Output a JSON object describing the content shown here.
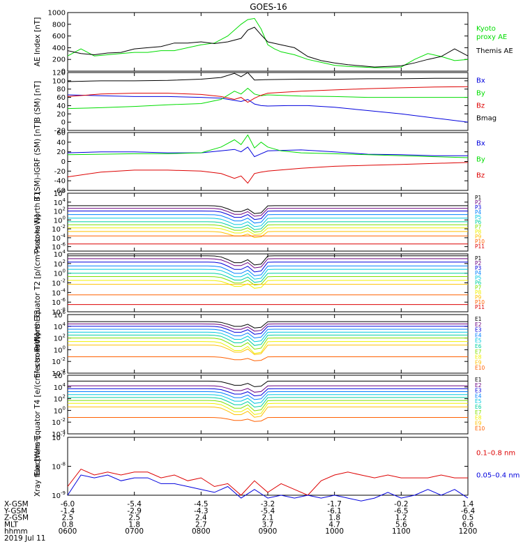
{
  "title": "GOES-16",
  "date_label": "2019 Jul 11",
  "footer": {
    "row_labels": [
      "X-GSM",
      "Y-GSM",
      "Z-GSM",
      "MLT",
      "hhmm"
    ],
    "columns": [
      [
        "-6.0",
        "-1.4",
        "2.5",
        "0.8",
        "0600"
      ],
      [
        "-5.4",
        "-2.9",
        "2.5",
        "1.8",
        "0700"
      ],
      [
        "-4.5",
        "-4.3",
        "2.4",
        "2.7",
        "0800"
      ],
      [
        "-3.2",
        "-5.4",
        "2.1",
        "3.7",
        "0900"
      ],
      [
        "-1.7",
        "-6.1",
        "1.8",
        "4.7",
        "1000"
      ],
      [
        "-0.2",
        "-6.5",
        "1.2",
        "5.6",
        "1100"
      ],
      [
        "1.4",
        "-6.4",
        "0.5",
        "6.6",
        "1200"
      ]
    ]
  },
  "colors": {
    "black": "#000000",
    "green": "#00dd00",
    "blue": "#0000dd",
    "red": "#dd0000",
    "channels": [
      "#000000",
      "#6a0080",
      "#0000dd",
      "#0080ff",
      "#00c8e0",
      "#00d0a0",
      "#80e000",
      "#f0f000",
      "#ffc000",
      "#ff6000",
      "#dd0000"
    ]
  },
  "chart_data": [
    {
      "type": "line",
      "ylabel": "AE Index [nT]",
      "ylim": [
        0,
        1000
      ],
      "yticks": [
        "0",
        "200",
        "400",
        "600",
        "800",
        "1000"
      ],
      "legend": [
        {
          "label": "Kyoto proxy AE",
          "lines": [
            "Kyoto",
            "proxy AE"
          ],
          "color": "#00dd00"
        },
        {
          "label": "Themis AE",
          "lines": [
            "Themis AE"
          ],
          "color": "#000000"
        }
      ],
      "series": [
        {
          "name": "Kyoto proxy AE",
          "color": "#00dd00",
          "x": [
            0,
            0.2,
            0.4,
            0.6,
            0.8,
            1.0,
            1.2,
            1.4,
            1.6,
            1.8,
            2.0,
            2.2,
            2.4,
            2.6,
            2.7,
            2.8,
            2.9,
            3.0,
            3.1,
            3.2,
            3.4,
            3.6,
            3.8,
            4.0,
            4.2,
            4.4,
            4.6,
            4.8,
            5.0,
            5.2,
            5.4,
            5.6,
            5.8,
            6.0
          ],
          "y": [
            260,
            380,
            260,
            280,
            300,
            320,
            320,
            350,
            350,
            400,
            450,
            480,
            600,
            800,
            880,
            900,
            720,
            450,
            380,
            330,
            280,
            200,
            150,
            100,
            80,
            70,
            60,
            60,
            70,
            200,
            300,
            250,
            180,
            200
          ]
        },
        {
          "name": "Themis AE",
          "color": "#000000",
          "x": [
            0,
            0.2,
            0.4,
            0.6,
            0.8,
            1.0,
            1.2,
            1.4,
            1.6,
            1.8,
            2.0,
            2.2,
            2.4,
            2.6,
            2.7,
            2.8,
            2.9,
            3.0,
            3.2,
            3.4,
            3.6,
            3.8,
            4.0,
            4.2,
            4.4,
            4.6,
            4.8,
            5.0,
            5.2,
            5.4,
            5.6,
            5.8,
            6.0
          ],
          "y": [
            350,
            300,
            280,
            310,
            320,
            380,
            400,
            420,
            480,
            480,
            500,
            470,
            500,
            560,
            700,
            750,
            620,
            500,
            450,
            400,
            250,
            180,
            140,
            110,
            90,
            70,
            80,
            90,
            140,
            200,
            250,
            380,
            260
          ]
        }
      ]
    },
    {
      "type": "line",
      "ylabel": "B (SM) [nT]",
      "ylim": [
        -20,
        120
      ],
      "yticks": [
        "-20",
        "0",
        "20",
        "40",
        "60",
        "80",
        "100",
        "120"
      ],
      "legend": [
        {
          "label": "Bx",
          "lines": [
            "Bx"
          ],
          "color": "#0000dd"
        },
        {
          "label": "By",
          "lines": [
            "By"
          ],
          "color": "#00dd00"
        },
        {
          "label": "Bz",
          "lines": [
            "Bz"
          ],
          "color": "#dd0000"
        },
        {
          "label": "Bmag",
          "lines": [
            "Bmag"
          ],
          "color": "#000000"
        }
      ],
      "series": [
        {
          "name": "Bmag",
          "color": "#000000",
          "x": [
            0,
            0.5,
            1.0,
            1.5,
            2.0,
            2.3,
            2.5,
            2.6,
            2.7,
            2.8,
            3.0,
            3.5,
            4.0,
            4.5,
            5.0,
            5.5,
            6.0
          ],
          "y": [
            98,
            100,
            100,
            101,
            104,
            108,
            118,
            110,
            120,
            102,
            103,
            104,
            104,
            105,
            105,
            106,
            106
          ]
        },
        {
          "name": "Bx",
          "color": "#0000dd",
          "x": [
            0,
            0.5,
            1.0,
            1.5,
            2.0,
            2.3,
            2.6,
            2.7,
            2.8,
            2.9,
            3.0,
            3.3,
            3.6,
            4.0,
            4.5,
            5.0,
            5.5,
            6.0
          ],
          "y": [
            66,
            64,
            62,
            62,
            60,
            58,
            50,
            55,
            44,
            40,
            39,
            40,
            40,
            36,
            28,
            20,
            10,
            0
          ]
        },
        {
          "name": "By",
          "color": "#00dd00",
          "x": [
            0,
            0.5,
            1.0,
            1.5,
            2.0,
            2.3,
            2.5,
            2.6,
            2.7,
            2.8,
            2.9,
            3.0,
            3.5,
            4.0,
            4.5,
            5.0,
            5.5,
            6.0
          ],
          "y": [
            33,
            35,
            38,
            42,
            45,
            55,
            75,
            68,
            82,
            68,
            64,
            66,
            63,
            62,
            60,
            60,
            60,
            60
          ]
        },
        {
          "name": "Bz",
          "color": "#dd0000",
          "x": [
            0,
            0.5,
            1.0,
            1.5,
            2.0,
            2.3,
            2.5,
            2.6,
            2.7,
            2.8,
            2.9,
            3.0,
            3.5,
            4.0,
            4.5,
            5.0,
            5.5,
            6.0
          ],
          "y": [
            62,
            68,
            70,
            70,
            67,
            62,
            55,
            60,
            48,
            58,
            65,
            70,
            75,
            78,
            81,
            83,
            85,
            86
          ]
        }
      ]
    },
    {
      "type": "line",
      "ylabel": "B (SM)-IGRF (SM) [nT]",
      "ylim": [
        -60,
        60
      ],
      "yticks": [
        "-60",
        "-40",
        "-20",
        "0",
        "20",
        "40",
        "60"
      ],
      "legend": [
        {
          "label": "Bx",
          "lines": [
            "Bx"
          ],
          "color": "#0000dd"
        },
        {
          "label": "By",
          "lines": [
            "By"
          ],
          "color": "#00dd00"
        },
        {
          "label": "Bz",
          "lines": [
            "Bz"
          ],
          "color": "#dd0000"
        }
      ],
      "series": [
        {
          "name": "Bx",
          "color": "#0000dd",
          "x": [
            0,
            0.5,
            1.0,
            1.5,
            2.0,
            2.3,
            2.5,
            2.6,
            2.7,
            2.8,
            2.9,
            3.0,
            3.5,
            4.0,
            4.5,
            5.0,
            5.5,
            6.0
          ],
          "y": [
            18,
            20,
            20,
            18,
            18,
            22,
            25,
            20,
            30,
            10,
            16,
            22,
            24,
            20,
            15,
            14,
            12,
            12
          ]
        },
        {
          "name": "By",
          "color": "#00dd00",
          "x": [
            0,
            0.5,
            1.0,
            1.5,
            2.0,
            2.3,
            2.5,
            2.6,
            2.7,
            2.8,
            2.9,
            3.0,
            3.2,
            3.5,
            4.0,
            4.5,
            5.0,
            5.5,
            6.0
          ],
          "y": [
            14,
            15,
            16,
            16,
            18,
            30,
            45,
            35,
            55,
            28,
            40,
            30,
            22,
            18,
            16,
            14,
            12,
            10,
            8
          ]
        },
        {
          "name": "Bz",
          "color": "#dd0000",
          "x": [
            0,
            0.5,
            1.0,
            1.5,
            2.0,
            2.3,
            2.5,
            2.6,
            2.7,
            2.8,
            2.9,
            3.0,
            3.5,
            4.0,
            4.5,
            5.0,
            5.5,
            6.0
          ],
          "y": [
            -32,
            -22,
            -18,
            -18,
            -20,
            -25,
            -35,
            -30,
            -45,
            -25,
            -22,
            -20,
            -14,
            -10,
            -8,
            -6,
            -4,
            -2
          ]
        }
      ]
    },
    {
      "type": "log-flux",
      "ylabel": "Protons North T1",
      "ylog": [
        -7,
        6
      ],
      "yticks": [
        {
          "m": "10",
          "e": "6",
          "v": 6
        },
        {
          "m": "10",
          "e": "4",
          "v": 4
        },
        {
          "m": "10",
          "e": "2",
          "v": 2
        },
        {
          "m": "10",
          "e": "0",
          "v": 0
        },
        {
          "m": "10",
          "e": "-2",
          "v": -2
        },
        {
          "m": "10",
          "e": "-4",
          "v": -4
        },
        {
          "m": "10",
          "e": "-6",
          "v": -6
        }
      ],
      "channels": [
        "P1",
        "P2",
        "P3",
        "P4",
        "P5",
        "P6",
        "P7",
        "P8",
        "P9",
        "P10",
        "P11"
      ],
      "base_levels": [
        3.2,
        2.6,
        2.0,
        1.2,
        0.4,
        -0.4,
        -1.1,
        -1.8,
        -2.6,
        -3.6,
        -5.4
      ],
      "dip_depth": [
        2.6,
        2.6,
        2.8,
        2.8,
        2.8,
        2.6,
        2.4,
        2.2,
        2.0,
        0,
        0
      ],
      "channel_range": [
        0,
        6
      ]
    },
    {
      "type": "log-flux",
      "ylabel": "Protons Equator T2 [p/(cm²-s-sr-keV)]",
      "ylog": [
        -8,
        4
      ],
      "yticks": [
        {
          "m": "10",
          "e": "4",
          "v": 4
        },
        {
          "m": "10",
          "e": "2",
          "v": 2
        },
        {
          "m": "10",
          "e": "0",
          "v": 0
        },
        {
          "m": "10",
          "e": "-2",
          "v": -2
        },
        {
          "m": "10",
          "e": "-4",
          "v": -4
        },
        {
          "m": "10",
          "e": "-6",
          "v": -6
        },
        {
          "m": "10",
          "e": "-8",
          "v": -8
        }
      ],
      "channels": [
        "P1",
        "P2",
        "P3",
        "P4",
        "P5",
        "P6",
        "P7",
        "P8",
        "P9",
        "P10",
        "P11"
      ],
      "base_levels": [
        3.6,
        3.0,
        2.3,
        1.5,
        0.8,
        0,
        -0.7,
        -1.5,
        -2.3,
        -4.5,
        -6.5
      ],
      "dip_depth": [
        2.8,
        2.8,
        3.0,
        3.0,
        3.0,
        2.8,
        2.6,
        2.4,
        0,
        0,
        0
      ],
      "channel_range": [
        0,
        6
      ]
    },
    {
      "type": "log-flux",
      "ylabel": "Electrons North T3",
      "ylog": [
        -4,
        6
      ],
      "yticks": [
        {
          "m": "10",
          "e": "6",
          "v": 6
        },
        {
          "m": "10",
          "e": "4",
          "v": 4
        },
        {
          "m": "10",
          "e": "2",
          "v": 2
        },
        {
          "m": "10",
          "e": "0",
          "v": 0
        },
        {
          "m": "10",
          "e": "-2",
          "v": -2
        },
        {
          "m": "10",
          "e": "-4",
          "v": -4
        }
      ],
      "channels": [
        "E1",
        "E2",
        "E3",
        "E4",
        "E5",
        "E6",
        "E7",
        "E8",
        "E9",
        "E10"
      ],
      "base_levels": [
        4.8,
        4.4,
        4.0,
        3.5,
        3.0,
        2.5,
        2.0,
        1.4,
        0.8,
        -1.2
      ],
      "dip_depth": [
        1.6,
        1.8,
        2.0,
        2.2,
        2.4,
        2.6,
        2.8,
        3.0,
        2.4,
        1.0
      ],
      "channel_range": [
        0,
        6
      ]
    },
    {
      "type": "log-flux",
      "ylabel": "Electrons Equator T4 [e/(cm²-s-sr-keV)]",
      "ylog": [
        -4,
        6
      ],
      "yticks": [
        {
          "m": "10",
          "e": "6",
          "v": 6
        },
        {
          "m": "10",
          "e": "4",
          "v": 4
        },
        {
          "m": "10",
          "e": "2",
          "v": 2
        },
        {
          "m": "10",
          "e": "0",
          "v": 0
        },
        {
          "m": "10",
          "e": "-2",
          "v": -2
        },
        {
          "m": "10",
          "e": "-4",
          "v": -4
        }
      ],
      "channels": [
        "E1",
        "E2",
        "E3",
        "E4",
        "E5",
        "E6",
        "E7",
        "E8",
        "E9",
        "E10"
      ],
      "base_levels": [
        5.0,
        4.2,
        3.7,
        3.2,
        2.7,
        2.2,
        1.7,
        1.2,
        0.6,
        -1.2
      ],
      "dip_depth": [
        1.4,
        1.6,
        1.8,
        2.0,
        2.2,
        2.4,
        2.6,
        2.8,
        2.6,
        1.0
      ],
      "channel_range": [
        0,
        6
      ]
    },
    {
      "type": "line-log",
      "ylabel": "Xray flux [W/m²]",
      "ylog": [
        -9,
        -7
      ],
      "yticks": [
        {
          "m": "10",
          "e": "-7",
          "v": -7
        },
        {
          "m": "10",
          "e": "-8",
          "v": -8
        },
        {
          "m": "10",
          "e": "-9",
          "v": -9
        }
      ],
      "legend": [
        {
          "label": "0.1-0.8 nm",
          "lines": [
            "0.1–0.8 nm"
          ],
          "color": "#dd0000"
        },
        {
          "label": "0.05-0.4 nm",
          "lines": [
            "0.05–0.4 nm"
          ],
          "color": "#0000dd"
        }
      ],
      "series": [
        {
          "name": "0.1-0.8 nm",
          "color": "#dd0000",
          "x": [
            0,
            0.2,
            0.4,
            0.6,
            0.8,
            1.0,
            1.2,
            1.4,
            1.6,
            1.8,
            2.0,
            2.2,
            2.4,
            2.6,
            2.8,
            3.0,
            3.2,
            3.4,
            3.6,
            3.8,
            4.0,
            4.2,
            4.4,
            4.6,
            4.8,
            5.0,
            5.2,
            5.4,
            5.6,
            5.8,
            6.0
          ],
          "y": [
            -8.7,
            -8.1,
            -8.3,
            -8.2,
            -8.3,
            -8.2,
            -8.2,
            -8.4,
            -8.3,
            -8.5,
            -8.4,
            -8.7,
            -8.6,
            -9.0,
            -8.5,
            -8.9,
            -8.6,
            -8.8,
            -9.0,
            -8.5,
            -8.3,
            -8.2,
            -8.3,
            -8.4,
            -8.3,
            -8.4,
            -8.4,
            -8.4,
            -8.3,
            -8.4,
            -8.4
          ]
        },
        {
          "name": "0.05-0.4 nm",
          "color": "#0000dd",
          "x": [
            0,
            0.2,
            0.4,
            0.6,
            0.8,
            1.0,
            1.2,
            1.4,
            1.6,
            1.8,
            2.0,
            2.2,
            2.4,
            2.6,
            2.8,
            3.0,
            3.2,
            3.4,
            3.6,
            3.8,
            4.0,
            4.2,
            4.4,
            4.6,
            4.8,
            5.0,
            5.2,
            5.4,
            5.6,
            5.8,
            6.0
          ],
          "y": [
            -9.0,
            -8.3,
            -8.4,
            -8.3,
            -8.5,
            -8.4,
            -8.4,
            -8.6,
            -8.6,
            -8.7,
            -8.8,
            -8.9,
            -8.7,
            -9.1,
            -8.8,
            -9.1,
            -9.0,
            -9.1,
            -9.0,
            -9.1,
            -9.0,
            -9.1,
            -9.2,
            -9.1,
            -8.9,
            -9.1,
            -9.0,
            -8.8,
            -9.0,
            -8.8,
            -9.1
          ]
        }
      ]
    }
  ]
}
